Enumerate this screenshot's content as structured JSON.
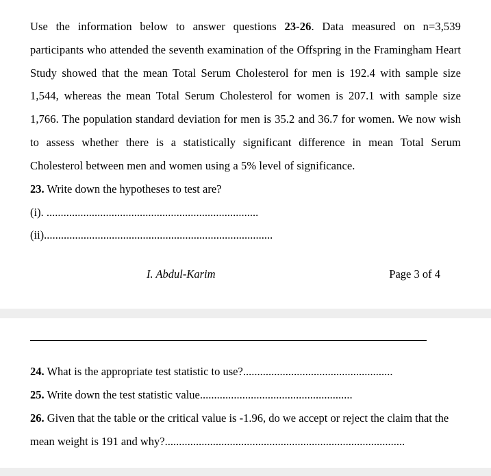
{
  "intro": "Use the information below to answer questions ",
  "introBold": "23-26",
  "introRest": ". Data measured on n=3,539 participants who attended the seventh examination of the Offspring in the Framingham Heart Study showed that the mean Total Serum Cholesterol for men is 192.4 with sample size 1,544, whereas the mean Total Serum Cholesterol for women is 207.1 with sample size 1,766. The population standard deviation for men is 35.2 and 36.7 for women. We now wish to assess whether there is a statistically significant difference in mean Total Serum Cholesterol between men and women using a 5% level of significance.",
  "q23": {
    "num": "23.",
    "text": " Write down the hypotheses to test are?",
    "line1": "(i). ...........................................................................",
    "line2": "(ii)................................................................................."
  },
  "footer": {
    "author": "I. Abdul-Karim",
    "page": "Page 3 of 4"
  },
  "q24": {
    "num": "24.",
    "text": " What is the appropriate test statistic to use?....................................................."
  },
  "q25": {
    "num": "25.",
    "text": " Write down the test statistic value......................................................"
  },
  "q26": {
    "num": "26.",
    "text": " Given that the table or the critical value is -1.96, do we accept or reject the claim that the mean weight is 191 and why?....................................................................................."
  }
}
